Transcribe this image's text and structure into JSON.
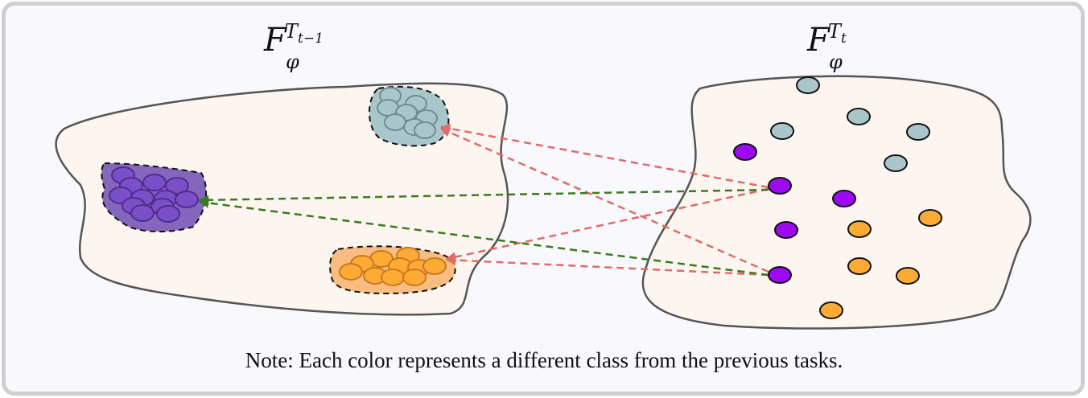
{
  "left_space": {
    "label_main": "F",
    "label_sub": "φ",
    "label_sup": "T",
    "label_sup_sub": "t−1"
  },
  "right_space": {
    "label_main": "F",
    "label_sub": "φ",
    "label_sup": "T",
    "label_sup_sub": "t"
  },
  "note": "Note: Each color represents a different class from the previous tasks.",
  "colors": {
    "space_fill": "#fdf5ef",
    "teal": "#a9c7cb",
    "purple_cluster": "#8467bd",
    "purple_point": "#9d08f5",
    "orange": "#fdab35",
    "red_arrow": "#e06b68",
    "green_arrow": "#3b7a1e"
  }
}
